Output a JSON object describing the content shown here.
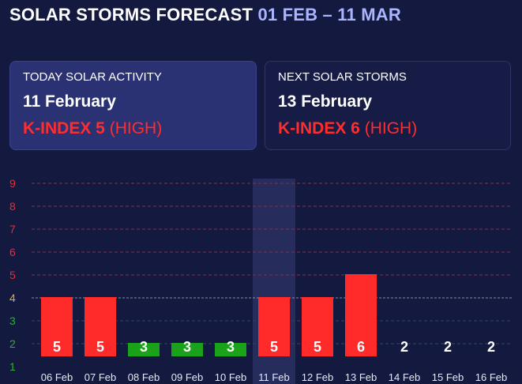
{
  "header": {
    "title": "SOLAR STORMS FORECAST",
    "range": "01 FEB – 11 MAR"
  },
  "today_card": {
    "label": "TODAY SOLAR ACTIVITY",
    "date": "11 February",
    "kindex": "K-INDEX 5",
    "level": "(HIGH)"
  },
  "next_card": {
    "label": "NEXT SOLAR STORMS",
    "date": "13 February",
    "kindex": "K-INDEX 6",
    "level": "(HIGH)"
  },
  "colors": {
    "high": "#ff2a2a",
    "low": "#1aa31a",
    "tick_red": "#e0303a",
    "tick_yellow": "#e0b030",
    "tick_green": "#2fb02f",
    "highlight": "#2a3060"
  },
  "chart_data": {
    "type": "bar",
    "categories": [
      "06 Feb",
      "07 Feb",
      "08 Feb",
      "09 Feb",
      "10 Feb",
      "11 Feb",
      "12 Feb",
      "13 Feb",
      "14 Feb",
      "15 Feb",
      "16 Feb"
    ],
    "values": [
      5,
      5,
      3,
      3,
      3,
      5,
      5,
      6,
      2,
      2,
      2
    ],
    "value_labels": [
      "5",
      "5",
      "3",
      "3",
      "3",
      "5",
      "5",
      "6",
      "2",
      "2",
      "2"
    ],
    "highlighted_category": "11 Feb",
    "yticks": [
      "1",
      "2",
      "3",
      "4",
      "5",
      "6",
      "7",
      "8",
      "9"
    ],
    "ylim": [
      1,
      9
    ],
    "grid": true
  }
}
